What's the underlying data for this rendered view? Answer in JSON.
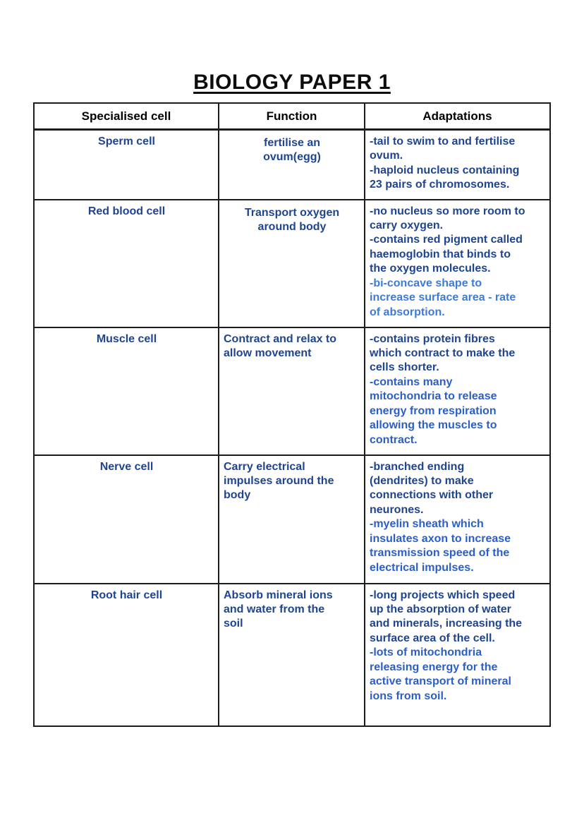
{
  "page": {
    "title": "BIOLOGY PAPER 1"
  },
  "colors": {
    "text_dark_blue": "#20458F",
    "text_medium_blue": "#2B5FC6",
    "text_light_blue": "#3E7BD9",
    "header_text": "#000000",
    "border": "#1c1c1c",
    "background": "#ffffff"
  },
  "table": {
    "headers": [
      "Specialised cell",
      "Function",
      "Adaptations"
    ],
    "rows": [
      {
        "cell": "Sperm cell",
        "function": "fertilise an\novum(egg)",
        "adaptations": [
          {
            "text": "-tail to swim to and fertilise\novum.",
            "tone": "dark"
          },
          {
            "text": "-haploid nucleus containing\n23 pairs of chromosomes.",
            "tone": "dark"
          }
        ]
      },
      {
        "cell": "Red blood cell",
        "function": "Transport oxygen\naround body",
        "adaptations": [
          {
            "text": "-no nucleus so more room to\ncarry oxygen.",
            "tone": "dark"
          },
          {
            "text": "-contains red pigment called\nhaemoglobin that binds to\nthe oxygen molecules.",
            "tone": "dark"
          },
          {
            "text": "-bi-concave shape to\nincrease surface area - rate\nof absorption.",
            "tone": "light"
          }
        ]
      },
      {
        "cell": "Muscle cell",
        "function": "Contract and relax to\nallow movement",
        "adaptations": [
          {
            "text": "-contains protein fibres\nwhich contract to make the\ncells shorter.",
            "tone": "dark"
          },
          {
            "text": "-contains many\nmitochondria to release\nenergy from respiration\nallowing the muscles to\ncontract.",
            "tone": "medium"
          }
        ]
      },
      {
        "cell": "Nerve cell",
        "function": "Carry electrical\nimpulses around the\nbody",
        "adaptations": [
          {
            "text": "-branched ending\n(dendrites) to make\nconnections with other\nneurones.",
            "tone": "dark"
          },
          {
            "text": "-myelin sheath which\ninsulates axon to increase\ntransmission speed of the\nelectrical impulses.",
            "tone": "medium"
          }
        ]
      },
      {
        "cell": "Root hair cell",
        "function": "Absorb mineral ions\nand water from the\nsoil",
        "adaptations": [
          {
            "text": "-long projects which speed\nup the absorption of water\nand minerals, increasing the\nsurface area of the cell.",
            "tone": "dark"
          },
          {
            "text": "-lots of mitochondria\nreleasing energy for the\nactive transport of mineral\nions from soil.",
            "tone": "medium"
          }
        ]
      }
    ]
  }
}
